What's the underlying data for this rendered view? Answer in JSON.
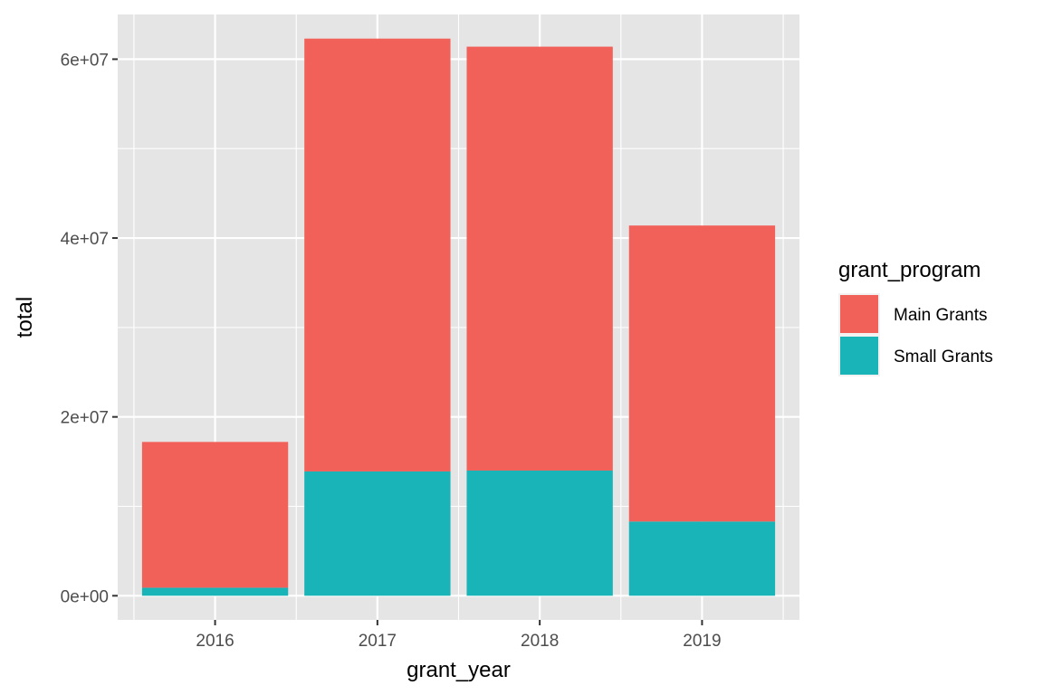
{
  "chart_data": {
    "type": "bar",
    "stacked": true,
    "categories": [
      "2016",
      "2017",
      "2018",
      "2019"
    ],
    "series": [
      {
        "name": "Small Grants",
        "values": [
          900000,
          13900000,
          14000000,
          8300000
        ],
        "color": "#19B4B8"
      },
      {
        "name": "Main Grants",
        "values": [
          16300000,
          48400000,
          47400000,
          33100000
        ],
        "color": "#F2605A"
      }
    ],
    "xlabel": "grant_year",
    "ylabel": "total",
    "ylim": [
      -2700000,
      65000000
    ],
    "yticks": [
      0,
      20000000,
      40000000,
      60000000
    ],
    "ytick_labels": [
      "0e+00",
      "2e+07",
      "4e+07",
      "6e+07"
    ],
    "grid": true,
    "panel_background": "#E5E5E5",
    "grid_color": "#FFFFFF",
    "legend": {
      "title": "grant_program",
      "position": "right",
      "entries": [
        "Main Grants",
        "Small Grants"
      ]
    }
  }
}
